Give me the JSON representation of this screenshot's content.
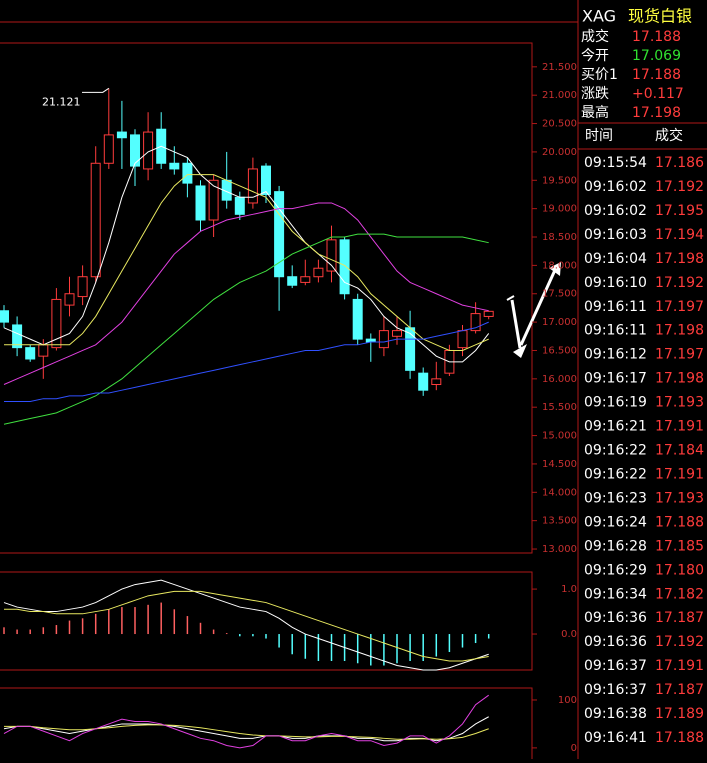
{
  "header": {
    "symbol": "XAG",
    "name": "现货白银"
  },
  "quote": [
    {
      "label": "成交",
      "value": "17.188"
    },
    {
      "label": "今开",
      "value": "17.069"
    },
    {
      "label": "买价1",
      "value": "17.188"
    },
    {
      "label": "涨跌",
      "value": "+0.117"
    },
    {
      "label": "最高",
      "value": "17.198"
    }
  ],
  "trades": {
    "columns": [
      "时间",
      "成交"
    ],
    "rows": [
      [
        "09:15:54",
        "17.186"
      ],
      [
        "09:16:02",
        "17.192"
      ],
      [
        "09:16:02",
        "17.195"
      ],
      [
        "09:16:03",
        "17.194"
      ],
      [
        "09:16:04",
        "17.198"
      ],
      [
        "09:16:10",
        "17.192"
      ],
      [
        "09:16:11",
        "17.197"
      ],
      [
        "09:16:11",
        "17.198"
      ],
      [
        "09:16:12",
        "17.197"
      ],
      [
        "09:16:17",
        "17.198"
      ],
      [
        "09:16:19",
        "17.193"
      ],
      [
        "09:16:21",
        "17.191"
      ],
      [
        "09:16:22",
        "17.184"
      ],
      [
        "09:16:22",
        "17.191"
      ],
      [
        "09:16:23",
        "17.193"
      ],
      [
        "09:16:24",
        "17.188"
      ],
      [
        "09:16:28",
        "17.185"
      ],
      [
        "09:16:29",
        "17.180"
      ],
      [
        "09:16:34",
        "17.182"
      ],
      [
        "09:16:36",
        "17.187"
      ],
      [
        "09:16:36",
        "17.192"
      ],
      [
        "09:16:37",
        "17.191"
      ],
      [
        "09:16:37",
        "17.187"
      ],
      [
        "09:16:38",
        "17.189"
      ],
      [
        "09:16:41",
        "17.188"
      ]
    ]
  },
  "chart_data": [
    {
      "type": "candlestick",
      "up_color": "#ff3c3c",
      "down_color": "#54ffff",
      "open": [
        17.2,
        16.95,
        16.55,
        16.4,
        16.55,
        17.3,
        17.45,
        17.8,
        19.8,
        20.35,
        20.3,
        19.7,
        20.4,
        19.8,
        19.8,
        19.4,
        18.8,
        19.5,
        19.2,
        19.1,
        19.75,
        19.3,
        17.8,
        17.7,
        17.8,
        17.9,
        18.45,
        17.4,
        16.7,
        16.55,
        16.75,
        16.9,
        16.1,
        15.9,
        16.1,
        16.55,
        16.85,
        17.1
      ],
      "high": [
        17.3,
        17.1,
        16.6,
        16.7,
        17.6,
        17.8,
        18.0,
        20.1,
        21.121,
        20.9,
        20.4,
        20.7,
        20.7,
        20.1,
        19.9,
        19.5,
        19.6,
        20.0,
        19.3,
        19.9,
        19.8,
        19.4,
        18.0,
        18.1,
        18.1,
        18.7,
        18.5,
        17.5,
        16.8,
        17.1,
        17.1,
        17.2,
        16.2,
        16.3,
        16.6,
        16.95,
        17.35,
        17.2
      ],
      "low": [
        16.9,
        16.4,
        16.3,
        16.0,
        16.5,
        17.1,
        17.3,
        17.7,
        19.7,
        19.7,
        19.4,
        19.5,
        19.7,
        19.6,
        19.2,
        18.6,
        18.5,
        19.0,
        18.8,
        19.0,
        19.1,
        17.2,
        17.6,
        17.65,
        17.7,
        17.7,
        17.4,
        16.6,
        16.3,
        16.4,
        16.6,
        16.0,
        15.7,
        15.8,
        16.05,
        16.4,
        16.8,
        17.05
      ],
      "close": [
        17.0,
        16.55,
        16.35,
        16.6,
        17.4,
        17.5,
        17.8,
        19.8,
        20.3,
        20.25,
        19.75,
        20.35,
        19.8,
        19.7,
        19.45,
        18.8,
        19.5,
        19.15,
        18.9,
        19.7,
        19.25,
        17.8,
        17.65,
        17.8,
        17.95,
        18.45,
        17.5,
        16.7,
        16.65,
        16.85,
        16.85,
        16.15,
        15.8,
        16.0,
        16.5,
        16.85,
        17.15,
        17.19
      ],
      "lines": [
        {
          "color": "#ffffff",
          "values": [
            16.9,
            16.8,
            16.7,
            16.6,
            16.7,
            16.8,
            17.1,
            17.7,
            18.4,
            19.2,
            19.8,
            20.0,
            20.1,
            20.0,
            19.9,
            19.6,
            19.4,
            19.3,
            19.2,
            19.2,
            19.3,
            19.0,
            18.7,
            18.4,
            18.2,
            18.0,
            17.7,
            17.6,
            17.4,
            17.1,
            16.9,
            16.8,
            16.6,
            16.4,
            16.3,
            16.3,
            16.5,
            16.8
          ]
        },
        {
          "color": "#e8e860",
          "values": [
            16.6,
            16.6,
            16.6,
            16.6,
            16.6,
            16.6,
            16.8,
            17.1,
            17.5,
            17.9,
            18.3,
            18.7,
            19.1,
            19.4,
            19.6,
            19.6,
            19.6,
            19.5,
            19.4,
            19.3,
            19.2,
            18.9,
            18.6,
            18.4,
            18.2,
            18.1,
            18.0,
            17.8,
            17.5,
            17.3,
            17.1,
            16.9,
            16.7,
            16.6,
            16.5,
            16.5,
            16.6,
            16.7
          ]
        },
        {
          "color": "#e040e0",
          "values": [
            15.9,
            16.0,
            16.1,
            16.2,
            16.3,
            16.4,
            16.5,
            16.6,
            16.8,
            17.0,
            17.3,
            17.6,
            17.9,
            18.2,
            18.4,
            18.6,
            18.7,
            18.8,
            18.85,
            18.9,
            18.95,
            19.0,
            19.0,
            19.05,
            19.1,
            19.1,
            19.0,
            18.8,
            18.5,
            18.2,
            17.9,
            17.7,
            17.6,
            17.5,
            17.4,
            17.3,
            17.25,
            17.2
          ]
        },
        {
          "color": "#40e040",
          "values": [
            15.2,
            15.25,
            15.3,
            15.35,
            15.4,
            15.5,
            15.6,
            15.7,
            15.85,
            16.0,
            16.2,
            16.4,
            16.6,
            16.8,
            17.0,
            17.2,
            17.4,
            17.55,
            17.7,
            17.8,
            17.9,
            18.05,
            18.2,
            18.3,
            18.4,
            18.5,
            18.5,
            18.55,
            18.55,
            18.55,
            18.5,
            18.5,
            18.5,
            18.5,
            18.5,
            18.5,
            18.45,
            18.4
          ]
        },
        {
          "color": "#3050ff",
          "values": [
            15.6,
            15.6,
            15.6,
            15.65,
            15.65,
            15.7,
            15.7,
            15.75,
            15.75,
            15.8,
            15.85,
            15.9,
            15.95,
            16.0,
            16.05,
            16.1,
            16.15,
            16.2,
            16.25,
            16.3,
            16.35,
            16.4,
            16.45,
            16.5,
            16.5,
            16.55,
            16.6,
            16.6,
            16.65,
            16.65,
            16.7,
            16.7,
            16.7,
            16.75,
            16.8,
            16.85,
            16.9,
            17.0
          ]
        }
      ],
      "annotation": {
        "text": "21.121",
        "value": 21.121,
        "index": 8
      },
      "ylim": [
        12.93,
        21.92
      ],
      "yticks": [
        {
          "value": 21.5,
          "label": "21.500"
        },
        {
          "value": 21,
          "label": "21.000"
        },
        {
          "value": 20.5,
          "label": "20.500"
        },
        {
          "value": 20,
          "label": "20.000"
        },
        {
          "value": 19.5,
          "label": "19.500"
        },
        {
          "value": 19,
          "label": "19.000"
        },
        {
          "value": 18.5,
          "label": "18.500"
        },
        {
          "value": 18,
          "label": "18.000"
        },
        {
          "value": 17.5,
          "label": "17.500"
        },
        {
          "value": 17,
          "label": "17.000"
        },
        {
          "value": 16.5,
          "label": "16.500"
        },
        {
          "value": 16,
          "label": "16.000"
        },
        {
          "value": 15.5,
          "label": "15.500"
        },
        {
          "value": 15,
          "label": "15.000"
        },
        {
          "value": 14.5,
          "label": "14.500"
        },
        {
          "value": 14,
          "label": "14.000"
        },
        {
          "value": 13.5,
          "label": "13.500"
        },
        {
          "value": 13,
          "label": "13.000"
        }
      ]
    },
    {
      "type": "macd",
      "hist_up_color": "#ff6060",
      "hist_down_color": "#54ffff",
      "values": [
        0.15,
        0.1,
        0.1,
        0.15,
        0.2,
        0.3,
        0.35,
        0.45,
        0.55,
        0.6,
        0.6,
        0.65,
        0.7,
        0.55,
        0.4,
        0.25,
        0.1,
        0.02,
        -0.05,
        -0.05,
        -0.1,
        -0.3,
        -0.45,
        -0.55,
        -0.6,
        -0.6,
        -0.6,
        -0.65,
        -0.7,
        -0.7,
        -0.65,
        -0.6,
        -0.6,
        -0.5,
        -0.4,
        -0.3,
        -0.2,
        -0.1
      ],
      "lines": [
        {
          "color": "#ffffff",
          "values": [
            0.7,
            0.6,
            0.55,
            0.5,
            0.5,
            0.55,
            0.6,
            0.7,
            0.85,
            1.0,
            1.1,
            1.15,
            1.2,
            1.1,
            1.0,
            0.9,
            0.8,
            0.7,
            0.6,
            0.55,
            0.5,
            0.35,
            0.15,
            0.0,
            -0.1,
            -0.2,
            -0.3,
            -0.4,
            -0.5,
            -0.6,
            -0.7,
            -0.75,
            -0.8,
            -0.8,
            -0.75,
            -0.65,
            -0.55,
            -0.45
          ]
        },
        {
          "color": "#e8e860",
          "values": [
            0.55,
            0.55,
            0.5,
            0.5,
            0.45,
            0.45,
            0.45,
            0.5,
            0.55,
            0.65,
            0.75,
            0.85,
            0.9,
            0.95,
            0.95,
            0.95,
            0.9,
            0.85,
            0.8,
            0.75,
            0.7,
            0.6,
            0.5,
            0.4,
            0.3,
            0.2,
            0.1,
            0.0,
            -0.1,
            -0.2,
            -0.3,
            -0.4,
            -0.5,
            -0.55,
            -0.6,
            -0.6,
            -0.55,
            -0.5
          ]
        }
      ],
      "ylim": [
        -0.8,
        1.38
      ],
      "yticks": [
        {
          "value": 1,
          "label": "1.0"
        },
        {
          "value": 0,
          "label": "0.0"
        }
      ]
    },
    {
      "type": "kdj",
      "lines": [
        {
          "color": "#ffffff",
          "values": [
            40,
            45,
            45,
            40,
            35,
            30,
            35,
            40,
            45,
            50,
            50,
            50,
            48,
            45,
            40,
            35,
            30,
            25,
            20,
            20,
            25,
            25,
            20,
            20,
            25,
            25,
            25,
            20,
            20,
            15,
            15,
            20,
            20,
            15,
            20,
            30,
            50,
            65
          ]
        },
        {
          "color": "#e8e860",
          "values": [
            45,
            45,
            45,
            42,
            40,
            38,
            38,
            40,
            42,
            45,
            47,
            48,
            48,
            47,
            45,
            42,
            38,
            34,
            30,
            27,
            25,
            25,
            24,
            23,
            23,
            24,
            24,
            23,
            22,
            20,
            18,
            18,
            19,
            18,
            19,
            22,
            30,
            40
          ]
        },
        {
          "color": "#e040e0",
          "values": [
            30,
            45,
            45,
            35,
            25,
            15,
            30,
            40,
            50,
            60,
            55,
            55,
            50,
            40,
            30,
            20,
            15,
            5,
            0,
            5,
            25,
            25,
            15,
            15,
            25,
            30,
            25,
            15,
            15,
            5,
            10,
            25,
            25,
            10,
            25,
            50,
            90,
            110
          ]
        }
      ],
      "ylim": [
        -19,
        125
      ],
      "yticks": [
        100,
        0
      ]
    }
  ]
}
